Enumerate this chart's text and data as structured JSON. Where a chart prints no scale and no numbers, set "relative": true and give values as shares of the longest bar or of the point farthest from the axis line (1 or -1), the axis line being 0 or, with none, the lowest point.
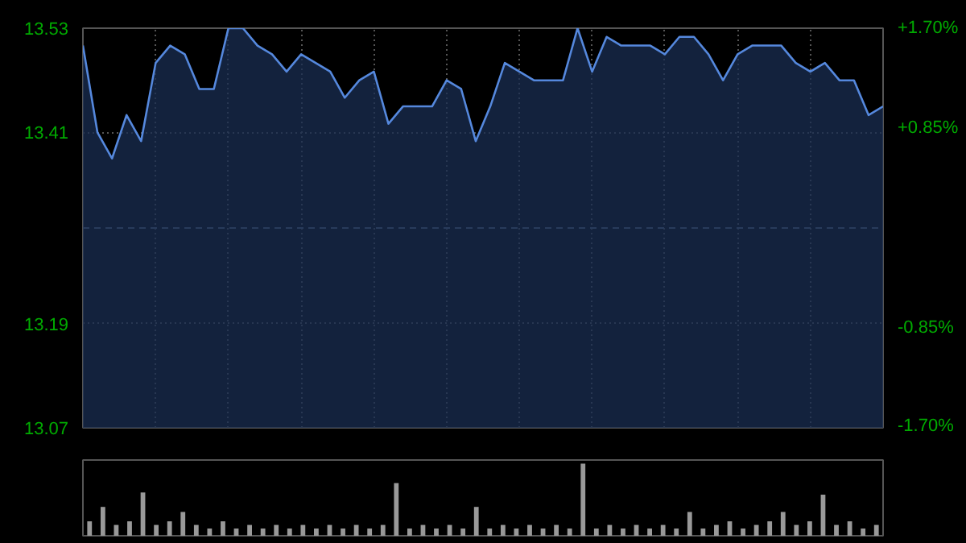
{
  "chart_data": [
    {
      "type": "area",
      "categories": [
        null,
        null,
        null,
        null,
        null,
        null,
        null,
        null,
        null,
        null,
        null,
        null,
        null,
        null,
        null,
        null,
        null,
        null,
        null,
        null,
        null,
        null,
        null,
        null,
        null,
        null,
        null,
        null,
        null,
        null,
        null,
        null,
        null,
        null,
        null,
        null,
        null,
        null,
        null,
        null,
        null,
        null,
        null,
        null,
        null,
        null,
        null,
        null,
        null,
        null,
        null,
        null,
        null,
        null,
        null,
        null
      ],
      "series": [
        {
          "color": "#5588dd",
          "values": [
            13.51,
            13.41,
            13.38,
            13.43,
            13.4,
            13.49,
            13.51,
            13.5,
            13.46,
            13.46,
            13.53,
            13.53,
            13.51,
            13.5,
            13.48,
            13.5,
            13.49,
            13.48,
            13.45,
            13.47,
            13.48,
            13.42,
            13.44,
            13.44,
            13.44,
            13.47,
            13.46,
            13.4,
            13.44,
            13.49,
            13.48,
            13.47,
            13.47,
            13.47,
            13.53,
            13.48,
            13.52,
            13.51,
            13.51,
            13.51,
            13.5,
            13.52,
            13.52,
            13.5,
            13.47,
            13.5,
            13.51,
            13.51,
            13.51,
            13.49,
            13.48,
            13.49,
            13.47,
            13.47,
            13.43,
            13.44
          ]
        }
      ],
      "ylim": [
        13.07,
        13.53
      ],
      "yticks": [
        13.07,
        13.19,
        13.41,
        13.53
      ],
      "y2lim": [
        -1.7,
        1.7
      ],
      "y2ticks": [
        {
          "value": -1.7,
          "label": "-1.70%"
        },
        {
          "value": -0.85,
          "label": "-0.85%"
        },
        {
          "value": 0.85,
          "label": "+0.85%"
        },
        {
          "value": 1.7,
          "label": "+1.70%"
        }
      ],
      "ref_lines": [
        {
          "axis": "y",
          "value": 13.3,
          "label": null,
          "color": "#556677",
          "line_style": "dashed"
        }
      ],
      "grid": true,
      "tick_labels": "y"
    },
    {
      "type": "bar",
      "relative": true,
      "categories": [
        null,
        null,
        null,
        null,
        null,
        null,
        null,
        null,
        null,
        null,
        null,
        null,
        null,
        null,
        null,
        null,
        null,
        null,
        null,
        null,
        null,
        null,
        null,
        null,
        null,
        null,
        null,
        null,
        null,
        null,
        null,
        null,
        null,
        null,
        null,
        null,
        null,
        null,
        null,
        null,
        null,
        null,
        null,
        null,
        null,
        null,
        null,
        null,
        null,
        null,
        null,
        null,
        null,
        null,
        null,
        null,
        null,
        null,
        null,
        null
      ],
      "color": "#999999",
      "values": [
        0.2,
        0.4,
        0.15,
        0.2,
        0.6,
        0.15,
        0.2,
        0.33,
        0.15,
        0.1,
        0.2,
        0.1,
        0.15,
        0.1,
        0.15,
        0.1,
        0.15,
        0.1,
        0.15,
        0.1,
        0.15,
        0.1,
        0.15,
        0.73,
        0.1,
        0.15,
        0.1,
        0.15,
        0.1,
        0.4,
        0.1,
        0.15,
        0.1,
        0.15,
        0.1,
        0.15,
        0.1,
        1,
        0.1,
        0.15,
        0.1,
        0.15,
        0.1,
        0.15,
        0.1,
        0.33,
        0.1,
        0.15,
        0.2,
        0.1,
        0.15,
        0.2,
        0.33,
        0.15,
        0.2,
        0.57,
        0.15,
        0.2,
        0.1,
        0.15
      ]
    }
  ]
}
